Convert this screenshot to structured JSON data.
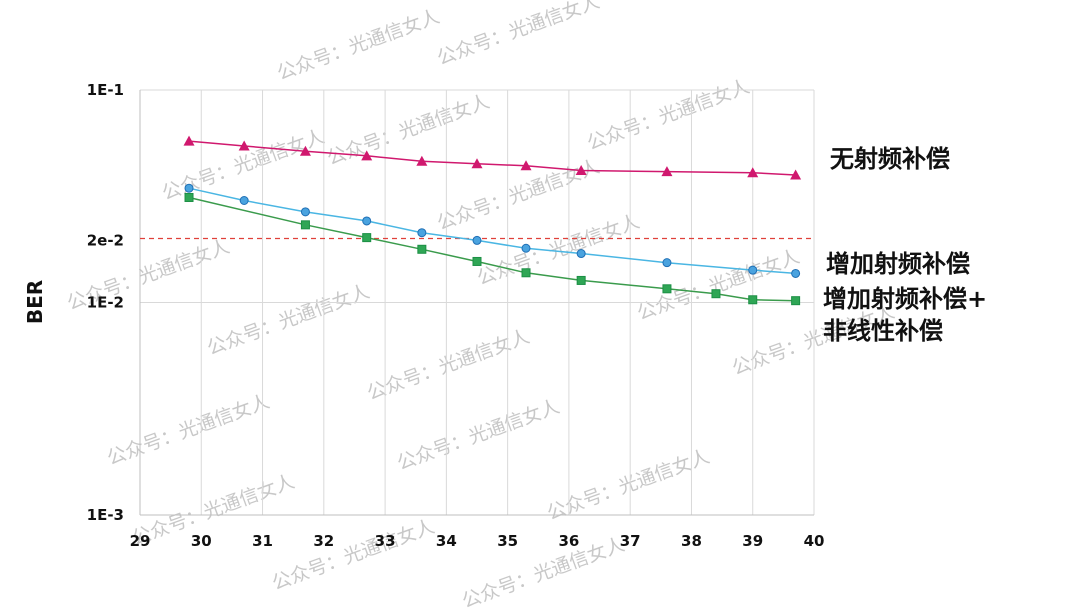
{
  "watermark_text": "公众号：光通信女人",
  "chart_data": {
    "type": "line",
    "xlabel": "",
    "ylabel": "BER",
    "xlim": [
      29,
      40
    ],
    "ylim": [
      0.001,
      0.1
    ],
    "yscale": "log",
    "xticks": [
      "29",
      "30",
      "31",
      "32",
      "33",
      "34",
      "35",
      "36",
      "37",
      "38",
      "39",
      "40"
    ],
    "yticks": [
      {
        "value": 0.1,
        "label": "1E-1"
      },
      {
        "value": 0.02,
        "label": "2e-2"
      },
      {
        "value": 0.01,
        "label": "1E-2"
      },
      {
        "value": 0.001,
        "label": "1E-3"
      }
    ],
    "grid": true,
    "reference_line": {
      "value": 0.02,
      "color": "#e0403a",
      "style": "dashed"
    },
    "series": [
      {
        "label_lines": [
          "无射频补偿"
        ],
        "color": "#d0186e",
        "marker": "triangle",
        "points": [
          [
            29.8,
            0.0575
          ],
          [
            30.7,
            0.0545
          ],
          [
            31.7,
            0.0515
          ],
          [
            32.7,
            0.049
          ],
          [
            33.6,
            0.0462
          ],
          [
            34.5,
            0.045
          ],
          [
            35.3,
            0.044
          ],
          [
            36.2,
            0.0418
          ],
          [
            37.6,
            0.0413
          ],
          [
            39.0,
            0.0408
          ],
          [
            39.7,
            0.0398
          ]
        ]
      },
      {
        "label_lines": [
          "增加射频补偿"
        ],
        "color": "#1f6fb5",
        "line_color": "#4ab6e3",
        "marker": "circle",
        "points": [
          [
            29.8,
            0.0345
          ],
          [
            30.7,
            0.0302
          ],
          [
            31.7,
            0.0267
          ],
          [
            32.7,
            0.0242
          ],
          [
            33.6,
            0.0213
          ],
          [
            34.5,
            0.0196
          ],
          [
            35.3,
            0.018
          ],
          [
            36.2,
            0.017
          ],
          [
            37.6,
            0.0154
          ],
          [
            39.0,
            0.0142
          ],
          [
            39.7,
            0.0137
          ]
        ]
      },
      {
        "label_lines": [
          "增加射频补偿+",
          "非线性补偿"
        ],
        "color": "#1c8f45",
        "line_color": "#3a9b4c",
        "marker": "square",
        "points": [
          [
            29.8,
            0.0312
          ],
          [
            31.7,
            0.0232
          ],
          [
            32.7,
            0.0202
          ],
          [
            33.6,
            0.0178
          ],
          [
            34.5,
            0.0156
          ],
          [
            35.3,
            0.0138
          ],
          [
            36.2,
            0.0127
          ],
          [
            37.6,
            0.0116
          ],
          [
            38.4,
            0.011
          ],
          [
            39.0,
            0.0103
          ],
          [
            39.7,
            0.0102
          ]
        ]
      }
    ]
  }
}
